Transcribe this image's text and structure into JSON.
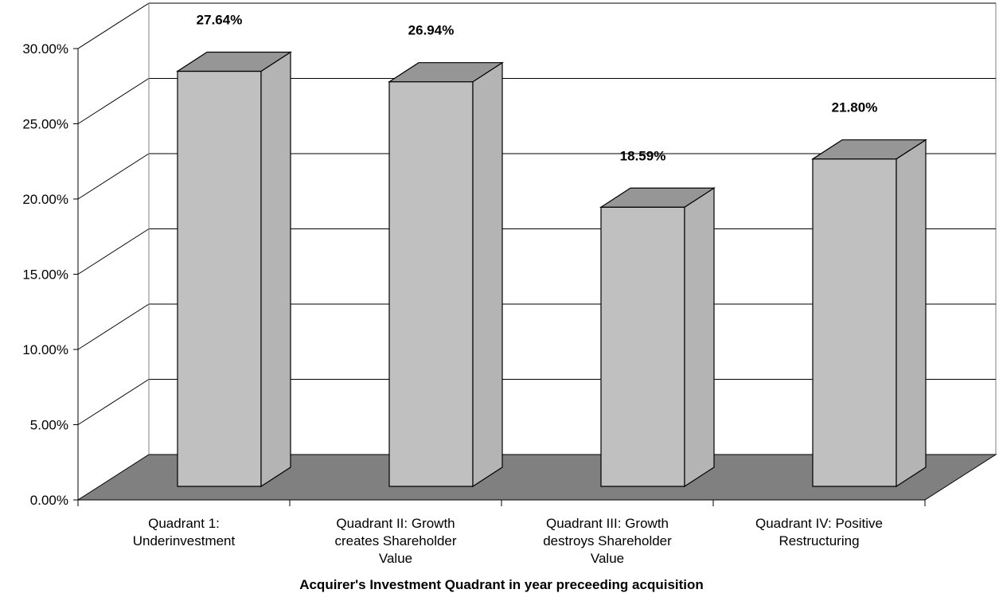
{
  "chart_data": {
    "type": "bar",
    "title": "",
    "xlabel": "Acquirer's Investment Quadrant in year preceeding acquisition",
    "ylabel": "",
    "categories": [
      [
        "Quadrant 1:",
        "Underinvestment"
      ],
      [
        "Quadrant II: Growth",
        "creates Shareholder",
        "Value"
      ],
      [
        "Quadrant III: Growth",
        "destroys Shareholder",
        "Value"
      ],
      [
        "Quadrant IV: Positive",
        "Restructuring"
      ]
    ],
    "values": [
      27.64,
      26.94,
      18.59,
      21.8
    ],
    "data_labels": [
      "27.64%",
      "26.94%",
      "18.59%",
      "21.80%"
    ],
    "ylim": [
      0,
      30
    ],
    "yticks": [
      0,
      5,
      10,
      15,
      20,
      25,
      30
    ],
    "ytick_labels": [
      "0.00%",
      "5.00%",
      "10.00%",
      "15.00%",
      "20.00%",
      "25.00%",
      "30.00%"
    ],
    "grid": true,
    "legend": "none",
    "style": "3d",
    "colors": {
      "bar_front": "#c0c0c0",
      "bar_top": "#969696",
      "bar_side": "#b4b4b4",
      "floor": "#808080",
      "wall": "#ffffff",
      "axis": "#000000",
      "grid": "#000000"
    }
  }
}
